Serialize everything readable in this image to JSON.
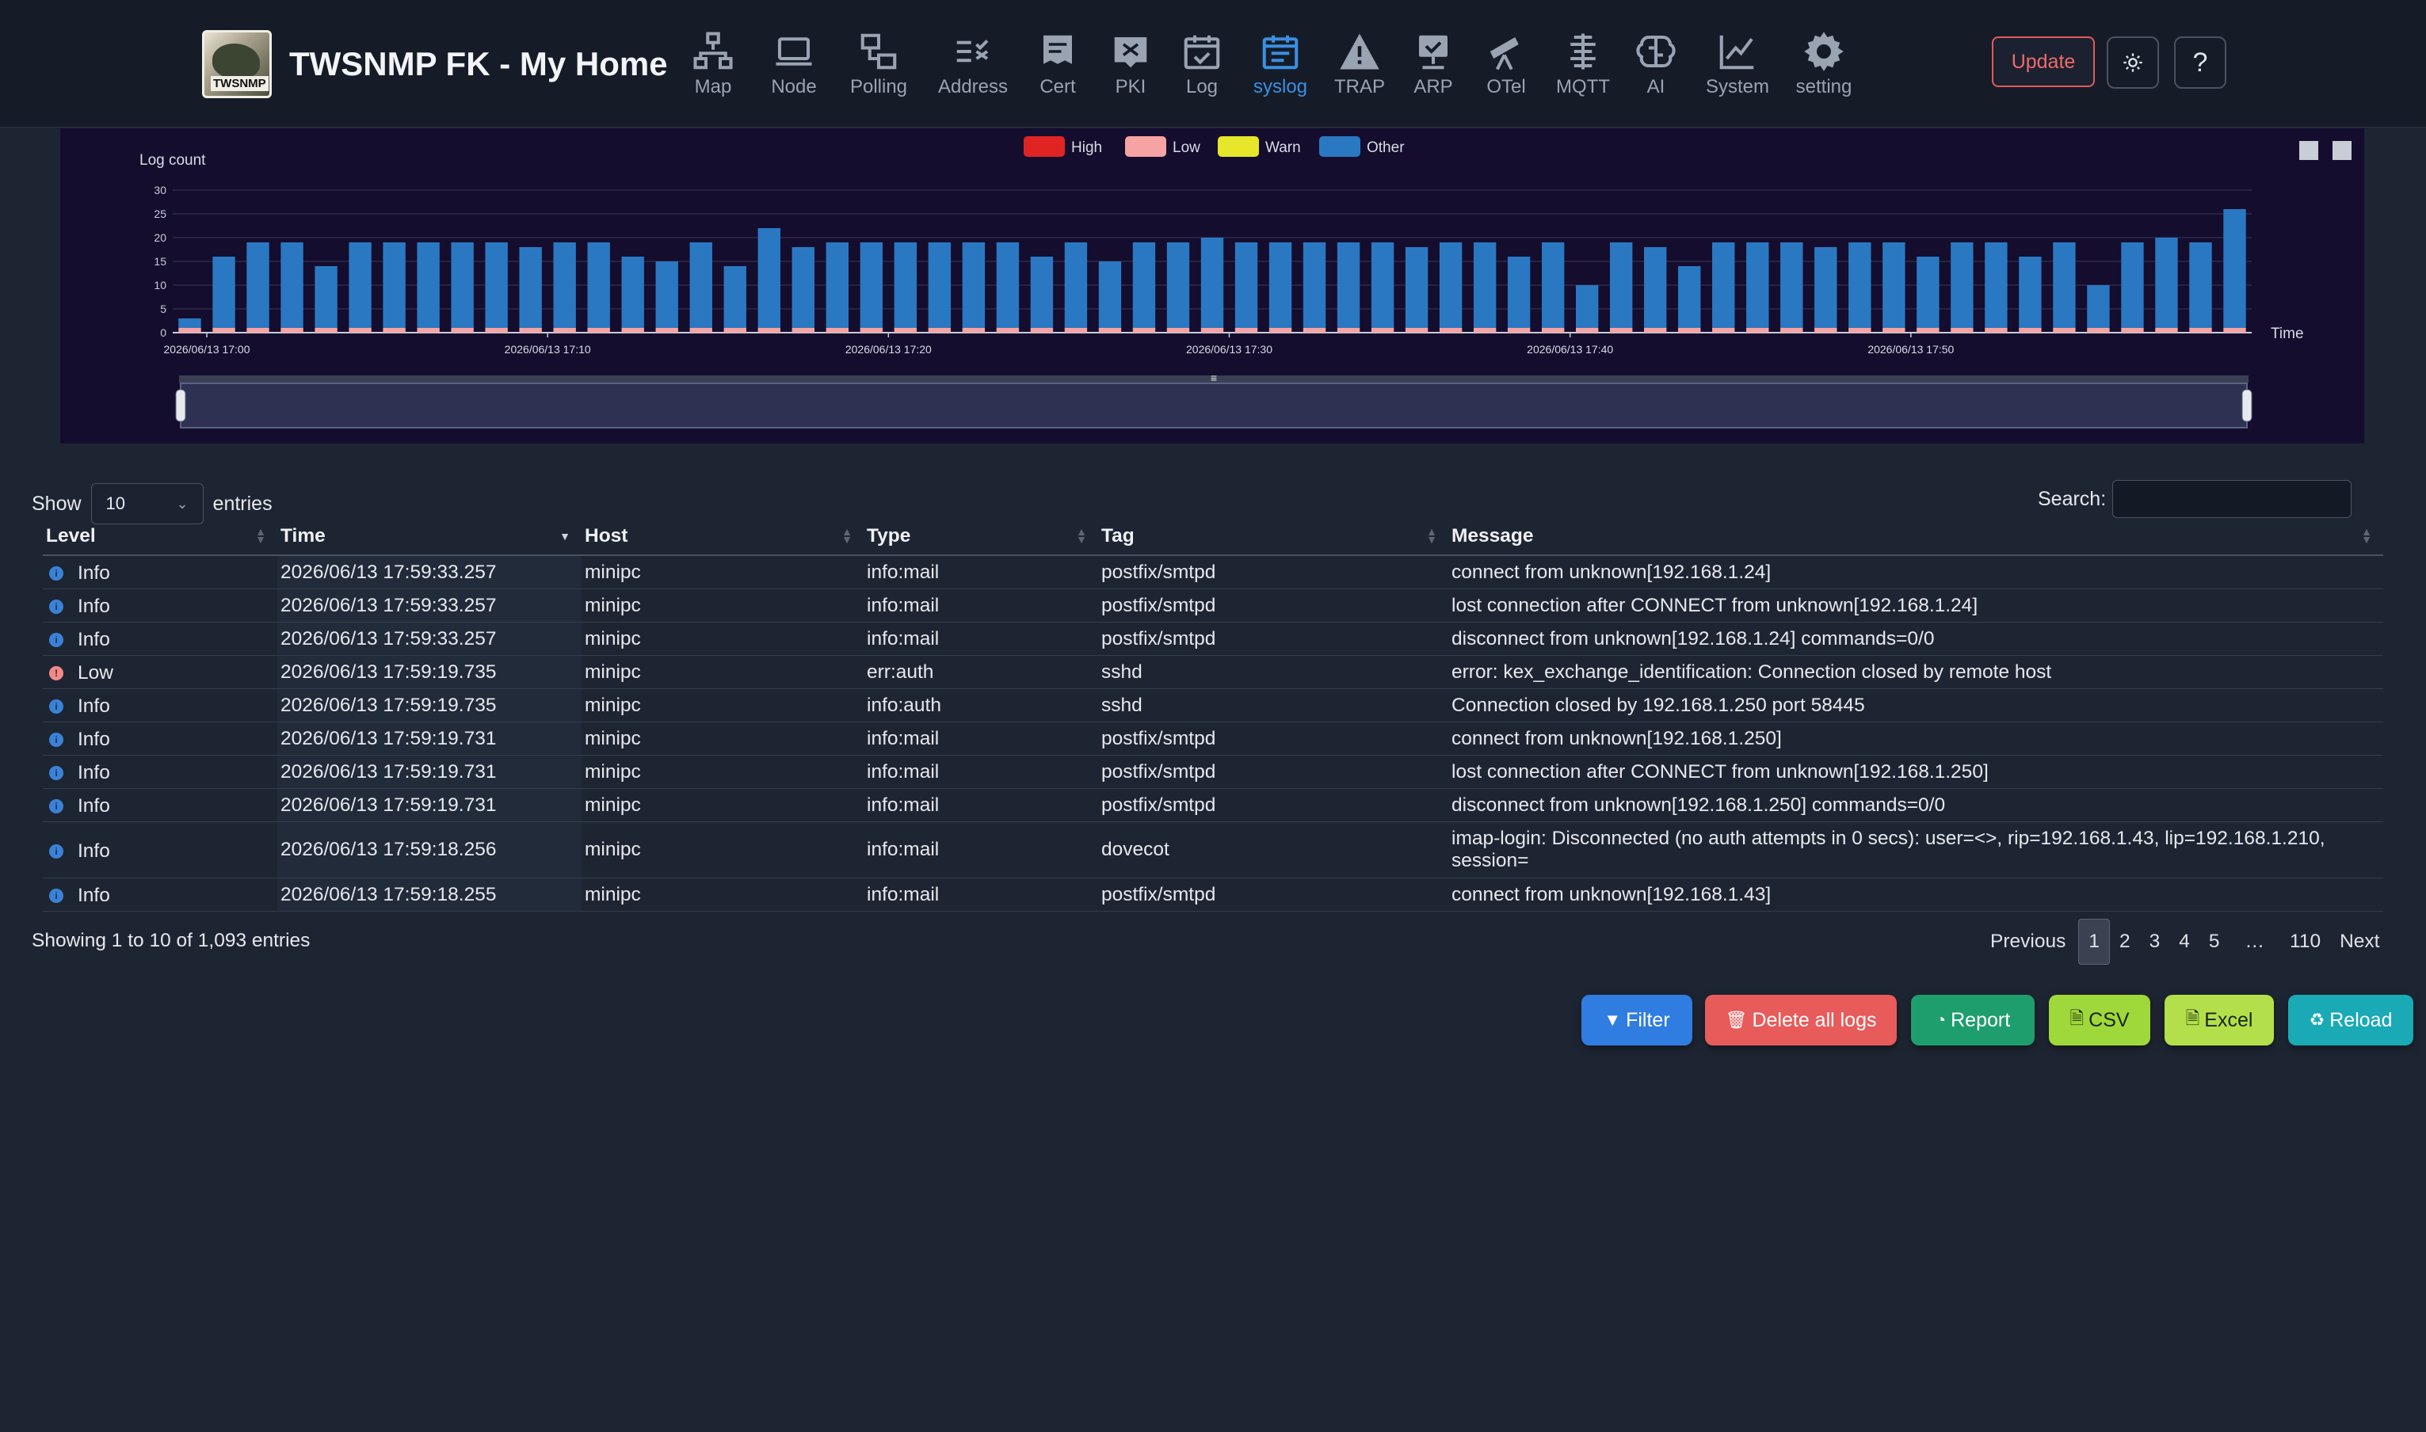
{
  "app": {
    "title": "TWSNMP FK - My Home",
    "logo_text": "TWSNMP"
  },
  "nav": [
    {
      "label": "Map",
      "icon": "map-network-icon"
    },
    {
      "label": "Node",
      "icon": "laptop-icon"
    },
    {
      "label": "Polling",
      "icon": "polling-icon"
    },
    {
      "label": "Address",
      "icon": "address-check-icon"
    },
    {
      "label": "Cert",
      "icon": "certificate-icon"
    },
    {
      "label": "PKI",
      "icon": "pki-icon"
    },
    {
      "label": "Log",
      "icon": "calendar-check-icon"
    },
    {
      "label": "syslog",
      "icon": "calendar-list-icon",
      "active": true
    },
    {
      "label": "TRAP",
      "icon": "warning-icon"
    },
    {
      "label": "ARP",
      "icon": "arp-icon"
    },
    {
      "label": "OTel",
      "icon": "telescope-icon"
    },
    {
      "label": "MQTT",
      "icon": "mqtt-icon"
    },
    {
      "label": "AI",
      "icon": "brain-icon"
    },
    {
      "label": "System",
      "icon": "line-chart-icon"
    },
    {
      "label": "setting",
      "icon": "gear-icon"
    }
  ],
  "header_buttons": {
    "update": "Update",
    "theme_icon": "sun-icon",
    "help": "?"
  },
  "chart_data": {
    "type": "bar",
    "ylabel": "Log count",
    "xlabel": "Time",
    "ylim": [
      0,
      30
    ],
    "yticks": [
      "0",
      "5",
      "10",
      "15",
      "20",
      "25",
      "30"
    ],
    "x_tick_labels": [
      "2026/06/13 17:00",
      "2026/06/13 17:10",
      "2026/06/13 17:20",
      "2026/06/13 17:30",
      "2026/06/13 17:40",
      "2026/06/13 17:50"
    ],
    "legend_position": "top-center",
    "stacked": true,
    "series": [
      {
        "name": "High",
        "color": "#e02424",
        "values": [
          0,
          0,
          0,
          0,
          0,
          0,
          0,
          0,
          0,
          0,
          0,
          0,
          0,
          0,
          0,
          0,
          0,
          0,
          0,
          0,
          0,
          0,
          0,
          0,
          0,
          0,
          0,
          0,
          0,
          0,
          0,
          0,
          0,
          0,
          0,
          0,
          0,
          0,
          0,
          0,
          0,
          0,
          0,
          0,
          0,
          0,
          0,
          0,
          0,
          0,
          0,
          0,
          0,
          0,
          0,
          0,
          0,
          0,
          0,
          0,
          0
        ]
      },
      {
        "name": "Low",
        "color": "#f5a3a3",
        "values": [
          1,
          1,
          1,
          1,
          1,
          1,
          1,
          1,
          1,
          1,
          1,
          1,
          1,
          1,
          1,
          1,
          1,
          1,
          1,
          1,
          1,
          1,
          1,
          1,
          1,
          1,
          1,
          1,
          1,
          1,
          1,
          1,
          1,
          1,
          1,
          1,
          1,
          1,
          1,
          1,
          1,
          1,
          1,
          1,
          1,
          1,
          1,
          1,
          1,
          1,
          1,
          1,
          1,
          1,
          1,
          1,
          1,
          1,
          1,
          1,
          1
        ]
      },
      {
        "name": "Warn",
        "color": "#e6e62a",
        "values": [
          0,
          0,
          0,
          0,
          0,
          0,
          0,
          0,
          0,
          0,
          0,
          0,
          0,
          0,
          0,
          0,
          0,
          0,
          0,
          0,
          0,
          0,
          0,
          0,
          0,
          0,
          0,
          0,
          0,
          0,
          0,
          0,
          0,
          0,
          0,
          0,
          0,
          0,
          0,
          0,
          0,
          0,
          0,
          0,
          0,
          0,
          0,
          0,
          0,
          0,
          0,
          0,
          0,
          0,
          0,
          0,
          0,
          0,
          0,
          0,
          0
        ]
      },
      {
        "name": "Other",
        "color": "#2a78c2",
        "values": [
          2,
          15,
          18,
          18,
          13,
          18,
          18,
          18,
          18,
          18,
          17,
          18,
          18,
          15,
          14,
          18,
          13,
          21,
          17,
          18,
          18,
          18,
          18,
          18,
          18,
          15,
          18,
          14,
          18,
          18,
          19,
          18,
          18,
          18,
          18,
          18,
          17,
          18,
          18,
          15,
          18,
          9,
          18,
          17,
          13,
          18,
          18,
          18,
          17,
          18,
          18,
          15,
          18,
          18,
          15,
          18,
          9,
          18,
          19,
          18,
          25
        ]
      }
    ],
    "zoom_handle": "≡"
  },
  "table": {
    "show_label": "Show",
    "entries_label": "entries",
    "page_size": "10",
    "search_label": "Search:",
    "search_value": "",
    "columns": [
      "Level",
      "Time",
      "Host",
      "Type",
      "Tag",
      "Message"
    ],
    "rows": [
      {
        "level": "Info",
        "time": "2026/06/13 17:59:33.257",
        "host": "minipc",
        "type": "info:mail",
        "tag": "postfix/smtpd",
        "message": "connect from unknown[192.168.1.24]"
      },
      {
        "level": "Info",
        "time": "2026/06/13 17:59:33.257",
        "host": "minipc",
        "type": "info:mail",
        "tag": "postfix/smtpd",
        "message": "lost connection after CONNECT from unknown[192.168.1.24]"
      },
      {
        "level": "Info",
        "time": "2026/06/13 17:59:33.257",
        "host": "minipc",
        "type": "info:mail",
        "tag": "postfix/smtpd",
        "message": "disconnect from unknown[192.168.1.24] commands=0/0"
      },
      {
        "level": "Low",
        "time": "2026/06/13 17:59:19.735",
        "host": "minipc",
        "type": "err:auth",
        "tag": "sshd",
        "message": "error: kex_exchange_identification: Connection closed by remote host"
      },
      {
        "level": "Info",
        "time": "2026/06/13 17:59:19.735",
        "host": "minipc",
        "type": "info:auth",
        "tag": "sshd",
        "message": "Connection closed by 192.168.1.250 port 58445"
      },
      {
        "level": "Info",
        "time": "2026/06/13 17:59:19.731",
        "host": "minipc",
        "type": "info:mail",
        "tag": "postfix/smtpd",
        "message": "connect from unknown[192.168.1.250]"
      },
      {
        "level": "Info",
        "time": "2026/06/13 17:59:19.731",
        "host": "minipc",
        "type": "info:mail",
        "tag": "postfix/smtpd",
        "message": "lost connection after CONNECT from unknown[192.168.1.250]"
      },
      {
        "level": "Info",
        "time": "2026/06/13 17:59:19.731",
        "host": "minipc",
        "type": "info:mail",
        "tag": "postfix/smtpd",
        "message": "disconnect from unknown[192.168.1.250] commands=0/0"
      },
      {
        "level": "Info",
        "time": "2026/06/13 17:59:18.256",
        "host": "minipc",
        "type": "info:mail",
        "tag": "dovecot",
        "message": "imap-login: Disconnected (no auth attempts in 0 secs): user=<>, rip=192.168.1.43, lip=192.168.1.210, session="
      },
      {
        "level": "Info",
        "time": "2026/06/13 17:59:18.255",
        "host": "minipc",
        "type": "info:mail",
        "tag": "postfix/smtpd",
        "message": "connect from unknown[192.168.1.43]"
      }
    ],
    "info": "Showing 1 to 10 of 1,093 entries",
    "pager": {
      "previous": "Previous",
      "pages": [
        "1",
        "2",
        "3",
        "4",
        "5",
        "…",
        "110"
      ],
      "current": "1",
      "next": "Next"
    }
  },
  "actions": [
    {
      "label": "Filter",
      "icon": "filter-icon",
      "color": "#2f7de1"
    },
    {
      "label": "Delete all logs",
      "icon": "trash-icon",
      "color": "#e85b5b"
    },
    {
      "label": "Report",
      "icon": "pie-chart-icon",
      "color": "#1f9e6d"
    },
    {
      "label": "CSV",
      "icon": "csv-file-icon",
      "color": "#9fd83a"
    },
    {
      "label": "Excel",
      "icon": "excel-file-icon",
      "color": "#b3e04a"
    },
    {
      "label": "Reload",
      "icon": "recycle-icon",
      "color": "#19aab5"
    }
  ]
}
